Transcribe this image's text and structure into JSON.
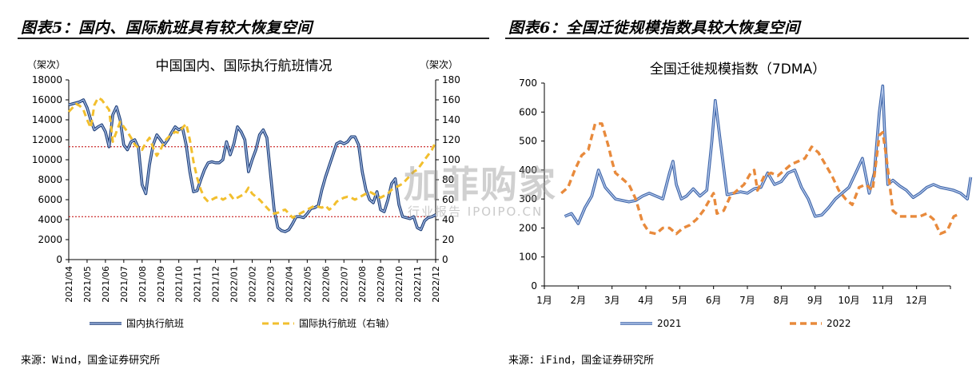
{
  "left_panel": {
    "title": "图表5：国内、国际航班具有较大恢复空间",
    "source": "来源：Wind，国金证券研究所"
  },
  "right_panel": {
    "title": "图表6：全国迁徙规模指数具较大恢复空间",
    "source": "来源：iFind，国金证券研究所"
  },
  "watermark": {
    "main": "加菲购家",
    "sub": "行业报告 IPOIPO.CN"
  },
  "colors": {
    "blue_series": "#4a6fae",
    "orange_series": "#f2bf2e",
    "orange_2022": "#e88a3c",
    "ref_line": "#c00000"
  },
  "chart_data": [
    {
      "type": "line",
      "title": "中国国内、国际执行航班情况",
      "ylabel_left": "（架次）",
      "ylabel_right": "（架次）",
      "categories": [
        "2021/04",
        "2021/05",
        "2021/06",
        "2021/07",
        "2021/08",
        "2021/09",
        "2021/10",
        "2021/11",
        "2021/12",
        "2022/01",
        "2022/02",
        "2022/03",
        "2022/04",
        "2022/05",
        "2022/06",
        "2022/07",
        "2022/08",
        "2022/09",
        "2022/10",
        "2022/11",
        "2022/12"
      ],
      "ylim_left": [
        0,
        18000
      ],
      "yticks_left": [
        0,
        2000,
        4000,
        6000,
        8000,
        10000,
        12000,
        14000,
        16000,
        18000
      ],
      "ylim_right": [
        0,
        180
      ],
      "yticks_right": [
        0,
        20,
        40,
        60,
        80,
        100,
        120,
        140,
        160,
        180
      ],
      "reference_lines_left": [
        11300,
        4300
      ],
      "series": [
        {
          "name": "国内执行航班",
          "axis": "left",
          "style": "solid",
          "x": [
            0,
            0.2,
            0.4,
            0.6,
            0.8,
            1.0,
            1.2,
            1.4,
            1.6,
            1.8,
            2.0,
            2.2,
            2.4,
            2.6,
            2.8,
            3.0,
            3.2,
            3.4,
            3.6,
            3.8,
            4.0,
            4.2,
            4.4,
            4.6,
            4.8,
            5.0,
            5.2,
            5.4,
            5.6,
            5.8,
            6.0,
            6.2,
            6.4,
            6.6,
            6.8,
            7.0,
            7.2,
            7.4,
            7.6,
            7.8,
            8.0,
            8.2,
            8.4,
            8.6,
            8.8,
            9.0,
            9.2,
            9.4,
            9.6,
            9.8,
            10.0,
            10.2,
            10.4,
            10.6,
            10.8,
            11.0,
            11.2,
            11.4,
            11.6,
            11.8,
            12.0,
            12.2,
            12.4,
            12.6,
            12.8,
            13.0,
            13.2,
            13.4,
            13.6,
            13.8,
            14.0,
            14.2,
            14.4,
            14.6,
            14.8,
            15.0,
            15.2,
            15.4,
            15.6,
            15.8,
            16.0,
            16.2,
            16.4,
            16.6,
            16.8,
            17.0,
            17.2,
            17.4,
            17.6,
            17.8,
            18.0,
            18.2,
            18.4,
            18.6,
            18.8,
            19.0,
            19.2,
            19.4,
            19.6,
            19.8,
            20.0
          ],
          "values": [
            15500,
            15600,
            15700,
            15800,
            16000,
            15200,
            14000,
            13000,
            13300,
            13500,
            12800,
            11300,
            14500,
            15300,
            14000,
            11500,
            11000,
            11800,
            12000,
            11200,
            7500,
            6600,
            9500,
            11500,
            12500,
            12000,
            11500,
            12000,
            12700,
            13300,
            13000,
            13200,
            11500,
            8800,
            6800,
            6900,
            8000,
            9000,
            9700,
            9800,
            9700,
            9700,
            10000,
            11800,
            10500,
            11600,
            13300,
            12800,
            12000,
            8800,
            10000,
            11000,
            12500,
            13000,
            12200,
            8500,
            5000,
            3200,
            2900,
            2800,
            3000,
            3600,
            4300,
            4300,
            4200,
            4600,
            5100,
            5200,
            5400,
            7000,
            8300,
            9400,
            10500,
            11600,
            11800,
            11600,
            11800,
            12300,
            12300,
            11500,
            8800,
            7000,
            6000,
            5700,
            6800,
            5000,
            4800,
            6000,
            7600,
            8100,
            5500,
            4300,
            4200,
            4100,
            4300,
            3200,
            3000,
            3900,
            4200,
            4300,
            4500
          ]
        },
        {
          "name": "国际执行航班（右轴）",
          "axis": "right",
          "style": "dashed",
          "x": [
            0,
            0.2,
            0.4,
            0.6,
            0.8,
            1.0,
            1.2,
            1.4,
            1.6,
            1.8,
            2.0,
            2.2,
            2.4,
            2.6,
            2.8,
            3.0,
            3.2,
            3.4,
            3.6,
            3.8,
            4.0,
            4.2,
            4.4,
            4.6,
            4.8,
            5.0,
            5.2,
            5.4,
            5.6,
            5.8,
            6.0,
            6.2,
            6.4,
            6.6,
            6.8,
            7.0,
            7.2,
            7.4,
            7.6,
            7.8,
            8.0,
            8.2,
            8.4,
            8.6,
            8.8,
            9.0,
            9.2,
            9.4,
            9.6,
            9.8,
            10.0,
            10.2,
            10.4,
            10.6,
            10.8,
            11.0,
            11.2,
            11.4,
            11.6,
            11.8,
            12.0,
            12.2,
            12.4,
            12.6,
            12.8,
            13.0,
            13.2,
            13.4,
            13.6,
            13.8,
            14.0,
            14.2,
            14.4,
            14.6,
            14.8,
            15.0,
            15.2,
            15.4,
            15.6,
            15.8,
            16.0,
            16.2,
            16.4,
            16.6,
            16.8,
            17.0,
            17.2,
            17.4,
            17.6,
            17.8,
            18.0,
            18.2,
            18.4,
            18.6,
            18.8,
            19.0,
            19.2,
            19.4,
            19.6,
            19.8,
            20.0
          ],
          "values": [
            148,
            152,
            156,
            154,
            150,
            140,
            132,
            155,
            162,
            160,
            155,
            150,
            118,
            128,
            138,
            133,
            128,
            122,
            115,
            112,
            110,
            117,
            122,
            112,
            104,
            110,
            118,
            122,
            125,
            128,
            127,
            132,
            136,
            120,
            98,
            82,
            70,
            62,
            58,
            60,
            62,
            63,
            60,
            62,
            65,
            60,
            62,
            64,
            66,
            72,
            66,
            63,
            60,
            56,
            52,
            48,
            46,
            47,
            49,
            50,
            46,
            42,
            44,
            46,
            48,
            50,
            52,
            54,
            53,
            52,
            54,
            50,
            53,
            58,
            60,
            62,
            63,
            62,
            60,
            62,
            64,
            66,
            68,
            66,
            64,
            62,
            64,
            66,
            70,
            72,
            74,
            76,
            80,
            84,
            88,
            90,
            95,
            100,
            105,
            110,
            118
          ]
        }
      ]
    },
    {
      "type": "line",
      "title": "全国迁徙规模指数（7DMA）",
      "categories": [
        "1月",
        "2月",
        "3月",
        "4月",
        "5月",
        "6月",
        "7月",
        "8月",
        "9月",
        "10月",
        "11月",
        "12月"
      ],
      "ylim": [
        0,
        700
      ],
      "yticks": [
        0,
        100,
        200,
        300,
        400,
        500,
        600,
        700
      ],
      "series": [
        {
          "name": "2021",
          "style": "solid",
          "x": [
            0.6,
            0.8,
            1.0,
            1.2,
            1.4,
            1.6,
            1.8,
            1.95,
            2.1,
            2.3,
            2.5,
            2.7,
            2.9,
            3.1,
            3.3,
            3.5,
            3.7,
            3.8,
            3.9,
            4.05,
            4.2,
            4.4,
            4.6,
            4.8,
            4.95,
            5.05,
            5.2,
            5.4,
            5.6,
            5.8,
            6.0,
            6.2,
            6.4,
            6.6,
            6.8,
            7.0,
            7.2,
            7.4,
            7.6,
            7.8,
            8.0,
            8.2,
            8.4,
            8.6,
            8.8,
            9.0,
            9.2,
            9.4,
            9.6,
            9.75,
            9.9,
            10.0,
            10.05,
            10.15,
            10.3,
            10.5,
            10.7,
            10.9,
            11.1,
            11.3,
            11.5,
            11.7,
            11.9,
            12.1,
            12.3,
            12.5,
            12.6
          ],
          "values": [
            240,
            250,
            215,
            270,
            310,
            400,
            340,
            320,
            300,
            295,
            290,
            295,
            310,
            320,
            310,
            300,
            390,
            430,
            350,
            300,
            310,
            335,
            310,
            330,
            500,
            640,
            500,
            315,
            320,
            325,
            320,
            335,
            340,
            390,
            350,
            360,
            390,
            400,
            340,
            300,
            240,
            245,
            270,
            300,
            320,
            340,
            390,
            440,
            320,
            390,
            600,
            690,
            550,
            350,
            365,
            345,
            330,
            305,
            320,
            340,
            350,
            340,
            335,
            330,
            320,
            300,
            375
          ]
        },
        {
          "name": "2022",
          "style": "dashed",
          "x": [
            0.5,
            0.7,
            0.9,
            1.1,
            1.3,
            1.5,
            1.7,
            1.9,
            2.0,
            2.1,
            2.3,
            2.5,
            2.7,
            2.9,
            3.1,
            3.3,
            3.5,
            3.7,
            3.9,
            4.1,
            4.3,
            4.5,
            4.7,
            4.9,
            5.0,
            5.1,
            5.3,
            5.5,
            5.7,
            5.9,
            6.1,
            6.2,
            6.3,
            6.5,
            6.7,
            6.9,
            7.1,
            7.3,
            7.5,
            7.7,
            7.9,
            8.1,
            8.3,
            8.5,
            8.7,
            8.9,
            9.1,
            9.3,
            9.5,
            9.7,
            9.9,
            10.0,
            10.1,
            10.3,
            10.5,
            10.7,
            10.9,
            11.1,
            11.3,
            11.5,
            11.7,
            11.9,
            12.1,
            12.3
          ],
          "values": [
            320,
            340,
            400,
            450,
            470,
            560,
            560,
            480,
            430,
            390,
            370,
            350,
            300,
            220,
            185,
            180,
            200,
            200,
            180,
            200,
            210,
            230,
            260,
            300,
            320,
            250,
            260,
            310,
            330,
            350,
            390,
            400,
            330,
            380,
            390,
            380,
            400,
            420,
            430,
            440,
            480,
            460,
            420,
            380,
            330,
            300,
            280,
            340,
            350,
            330,
            520,
            530,
            450,
            260,
            240,
            240,
            240,
            240,
            250,
            230,
            180,
            190,
            240,
            250
          ]
        }
      ]
    }
  ]
}
